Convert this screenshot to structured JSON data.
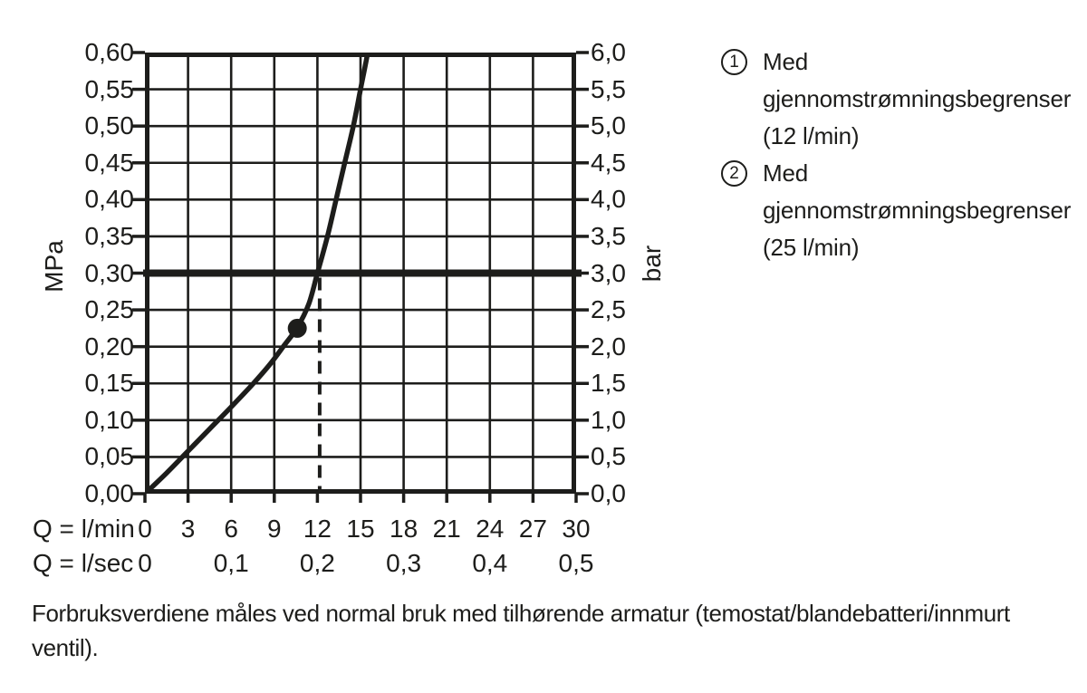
{
  "colors": {
    "ink": "#1d1d1b",
    "background": "#ffffff"
  },
  "chart_data": {
    "type": "line",
    "title": "",
    "x_axis": {
      "label_lmin": "Q = l/min",
      "label_lsec": "Q = l/sec",
      "xlim_lmin": [
        0,
        30
      ],
      "ticks_lmin": [
        0,
        3,
        6,
        9,
        12,
        15,
        18,
        21,
        24,
        27,
        30
      ],
      "ticks_lsec": [
        0,
        0.1,
        0.2,
        0.3,
        0.4,
        0.5
      ]
    },
    "y_axis_left": {
      "label": "MPa",
      "ylim": [
        0,
        0.6
      ],
      "ticks": [
        0.0,
        0.05,
        0.1,
        0.15,
        0.2,
        0.25,
        0.3,
        0.35,
        0.4,
        0.45,
        0.5,
        0.55,
        0.6
      ]
    },
    "y_axis_right": {
      "label": "bar",
      "ylim": [
        0,
        6.0
      ],
      "ticks": [
        0.0,
        0.5,
        1.0,
        1.5,
        2.0,
        2.5,
        3.0,
        3.5,
        4.0,
        4.5,
        5.0,
        5.5,
        6.0
      ]
    },
    "grid": true,
    "series": [
      {
        "name": "pressure-flow-curve",
        "points_lmin_mpa": [
          [
            0,
            0
          ],
          [
            1.5,
            0.028
          ],
          [
            3,
            0.058
          ],
          [
            4.5,
            0.088
          ],
          [
            6,
            0.118
          ],
          [
            7.5,
            0.149
          ],
          [
            8.7,
            0.176
          ],
          [
            9.7,
            0.202
          ],
          [
            10.6,
            0.226
          ],
          [
            11.4,
            0.258
          ],
          [
            12,
            0.3
          ],
          [
            12.7,
            0.35
          ],
          [
            13.3,
            0.4
          ],
          [
            13.9,
            0.45
          ],
          [
            14.5,
            0.5
          ],
          [
            15.0,
            0.55
          ],
          [
            15.5,
            0.6
          ],
          [
            15.8,
            0.64
          ]
        ]
      }
    ],
    "marker_point": {
      "lmin": 10.6,
      "mpa": 0.225
    },
    "annotations": [
      {
        "type": "hline",
        "mpa": 0.3,
        "bar": 3.0,
        "style": "thick"
      },
      {
        "type": "vline",
        "lmin": 12,
        "from_mpa": 0,
        "to_mpa": 0.3,
        "style": "dashed"
      }
    ]
  },
  "legend": {
    "items": [
      {
        "number": "1",
        "label": "Med gjennomstrømningsbegrenser (12 l/min)"
      },
      {
        "number": "2",
        "label": "Med gjennomstrømningsbegrenser (25 l/min)"
      }
    ]
  },
  "footnote": {
    "text": "Forbruksverdiene måles ved normal bruk med tilhørende armatur (temostat/blandebatteri/innmurt ventil)."
  }
}
